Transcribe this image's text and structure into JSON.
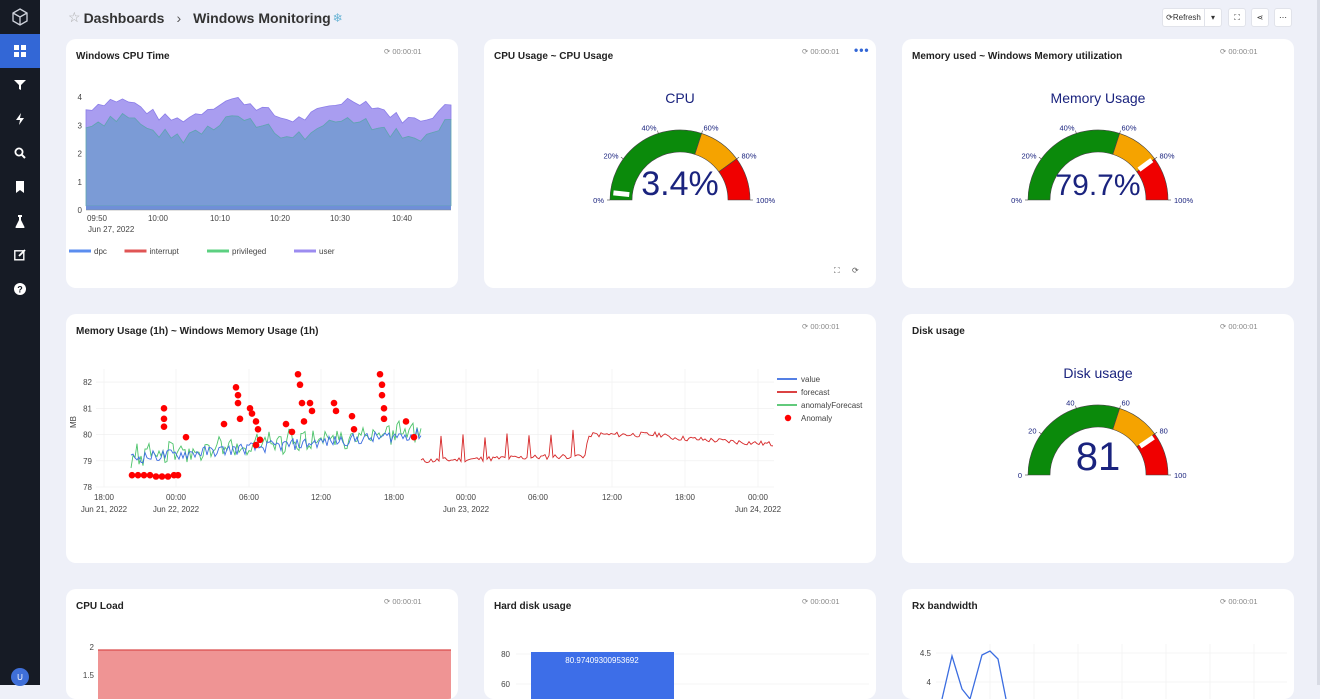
{
  "breadcrumb": {
    "root": "Dashboards",
    "sep": "›",
    "current": "Windows Monitoring",
    "snow": "❄"
  },
  "toolbar": {
    "refresh": "⟳Refresh",
    "caret": "▾",
    "fullscreen": "⛶",
    "share": "⋖",
    "more": "⋯"
  },
  "user": {
    "initial": "U"
  },
  "panels": {
    "cpu_time": {
      "title": "Windows CPU Time",
      "time": "⟳ 00:00:01",
      "chart_data": {
        "type": "area",
        "xticks": [
          "09:50",
          "10:00",
          "10:10",
          "10:20",
          "10:30",
          "10:40"
        ],
        "xsub": "Jun 27, 2022",
        "yticks": [
          "0",
          "1",
          "2",
          "3",
          "4"
        ],
        "ylim": [
          0,
          4
        ],
        "series": [
          {
            "name": "dpc",
            "color": "#5b8def"
          },
          {
            "name": "interrupt",
            "color": "#e05555"
          },
          {
            "name": "privileged",
            "color": "#5cd081"
          },
          {
            "name": "user",
            "color": "#9c8cf0"
          }
        ]
      }
    },
    "cpu_usage": {
      "title": "CPU Usage ~ CPU Usage",
      "time": "⟳ 00:00:01",
      "dots": "•••",
      "fullscreen": "⛶",
      "refresh": "⟳",
      "chart_data": {
        "type": "gauge",
        "label": "CPU",
        "value": "3.4%",
        "value_num": 3.4,
        "ticks": [
          "0%",
          "20%",
          "40%",
          "60%",
          "80%",
          "100%"
        ],
        "bands": [
          {
            "from": 0,
            "to": 60,
            "color": "#0b8a0b"
          },
          {
            "from": 60,
            "to": 80,
            "color": "#f5a300"
          },
          {
            "from": 80,
            "to": 100,
            "color": "#f00000"
          }
        ]
      }
    },
    "memory_used": {
      "title": "Memory used ~ Windows Memory utilization",
      "time": "⟳ 00:00:01",
      "chart_data": {
        "type": "gauge",
        "label": "Memory Usage",
        "value": "79.7%",
        "value_num": 79.7,
        "ticks": [
          "0%",
          "20%",
          "40%",
          "60%",
          "80%",
          "100%"
        ],
        "bands": [
          {
            "from": 0,
            "to": 60,
            "color": "#0b8a0b"
          },
          {
            "from": 60,
            "to": 80,
            "color": "#f5a300"
          },
          {
            "from": 80,
            "to": 100,
            "color": "#f00000"
          }
        ]
      }
    },
    "memory_1h": {
      "title": "Memory Usage (1h) ~ Windows Memory Usage (1h)",
      "time": "⟳ 00:00:01",
      "chart_data": {
        "type": "line",
        "ylabel": "MB",
        "yticks": [
          "78",
          "79",
          "80",
          "81",
          "82"
        ],
        "ylim": [
          78,
          82.5
        ],
        "xticks": [
          "18:00",
          "00:00",
          "06:00",
          "12:00",
          "18:00",
          "00:00",
          "06:00",
          "12:00",
          "18:00",
          "00:00"
        ],
        "xsub": [
          [
            "18:00",
            "Jun 21, 2022"
          ],
          [
            "00:00",
            "Jun 22, 2022"
          ],
          [
            "00:00",
            "Jun 23, 2022"
          ],
          [
            "00:00",
            "Jun 24, 2022"
          ]
        ],
        "series": [
          {
            "name": "value",
            "color": "#3b6de0"
          },
          {
            "name": "forecast",
            "color": "#d62728"
          },
          {
            "name": "anomalyForecast",
            "color": "#4cc36a"
          },
          {
            "name": "Anomaly",
            "color": "#ff0000"
          }
        ]
      }
    },
    "disk_usage": {
      "title": "Disk usage",
      "time": "⟳ 00:00:01",
      "chart_data": {
        "type": "gauge",
        "label": "Disk usage",
        "value": "81",
        "value_num": 81,
        "ticks": [
          "0",
          "20",
          "40",
          "60",
          "80",
          "100"
        ],
        "bands": [
          {
            "from": 0,
            "to": 60,
            "color": "#0b8a0b"
          },
          {
            "from": 60,
            "to": 80,
            "color": "#f5a300"
          },
          {
            "from": 80,
            "to": 100,
            "color": "#f00000"
          }
        ]
      }
    },
    "cpu_load": {
      "title": "CPU Load",
      "time": "⟳ 00:00:01",
      "chart_data": {
        "type": "area",
        "yticks": [
          "1.5",
          "2"
        ]
      }
    },
    "hard_disk": {
      "title": "Hard disk usage",
      "time": "⟳ 00:00:01",
      "chart_data": {
        "type": "bar",
        "value": 80.97409300953692,
        "label": "80.97409300953692",
        "yticks": [
          "60",
          "80"
        ]
      }
    },
    "rx_bw": {
      "title": "Rx bandwidth",
      "time": "⟳ 00:00:01",
      "chart_data": {
        "type": "line",
        "yticks": [
          "4",
          "4.5"
        ]
      }
    }
  }
}
